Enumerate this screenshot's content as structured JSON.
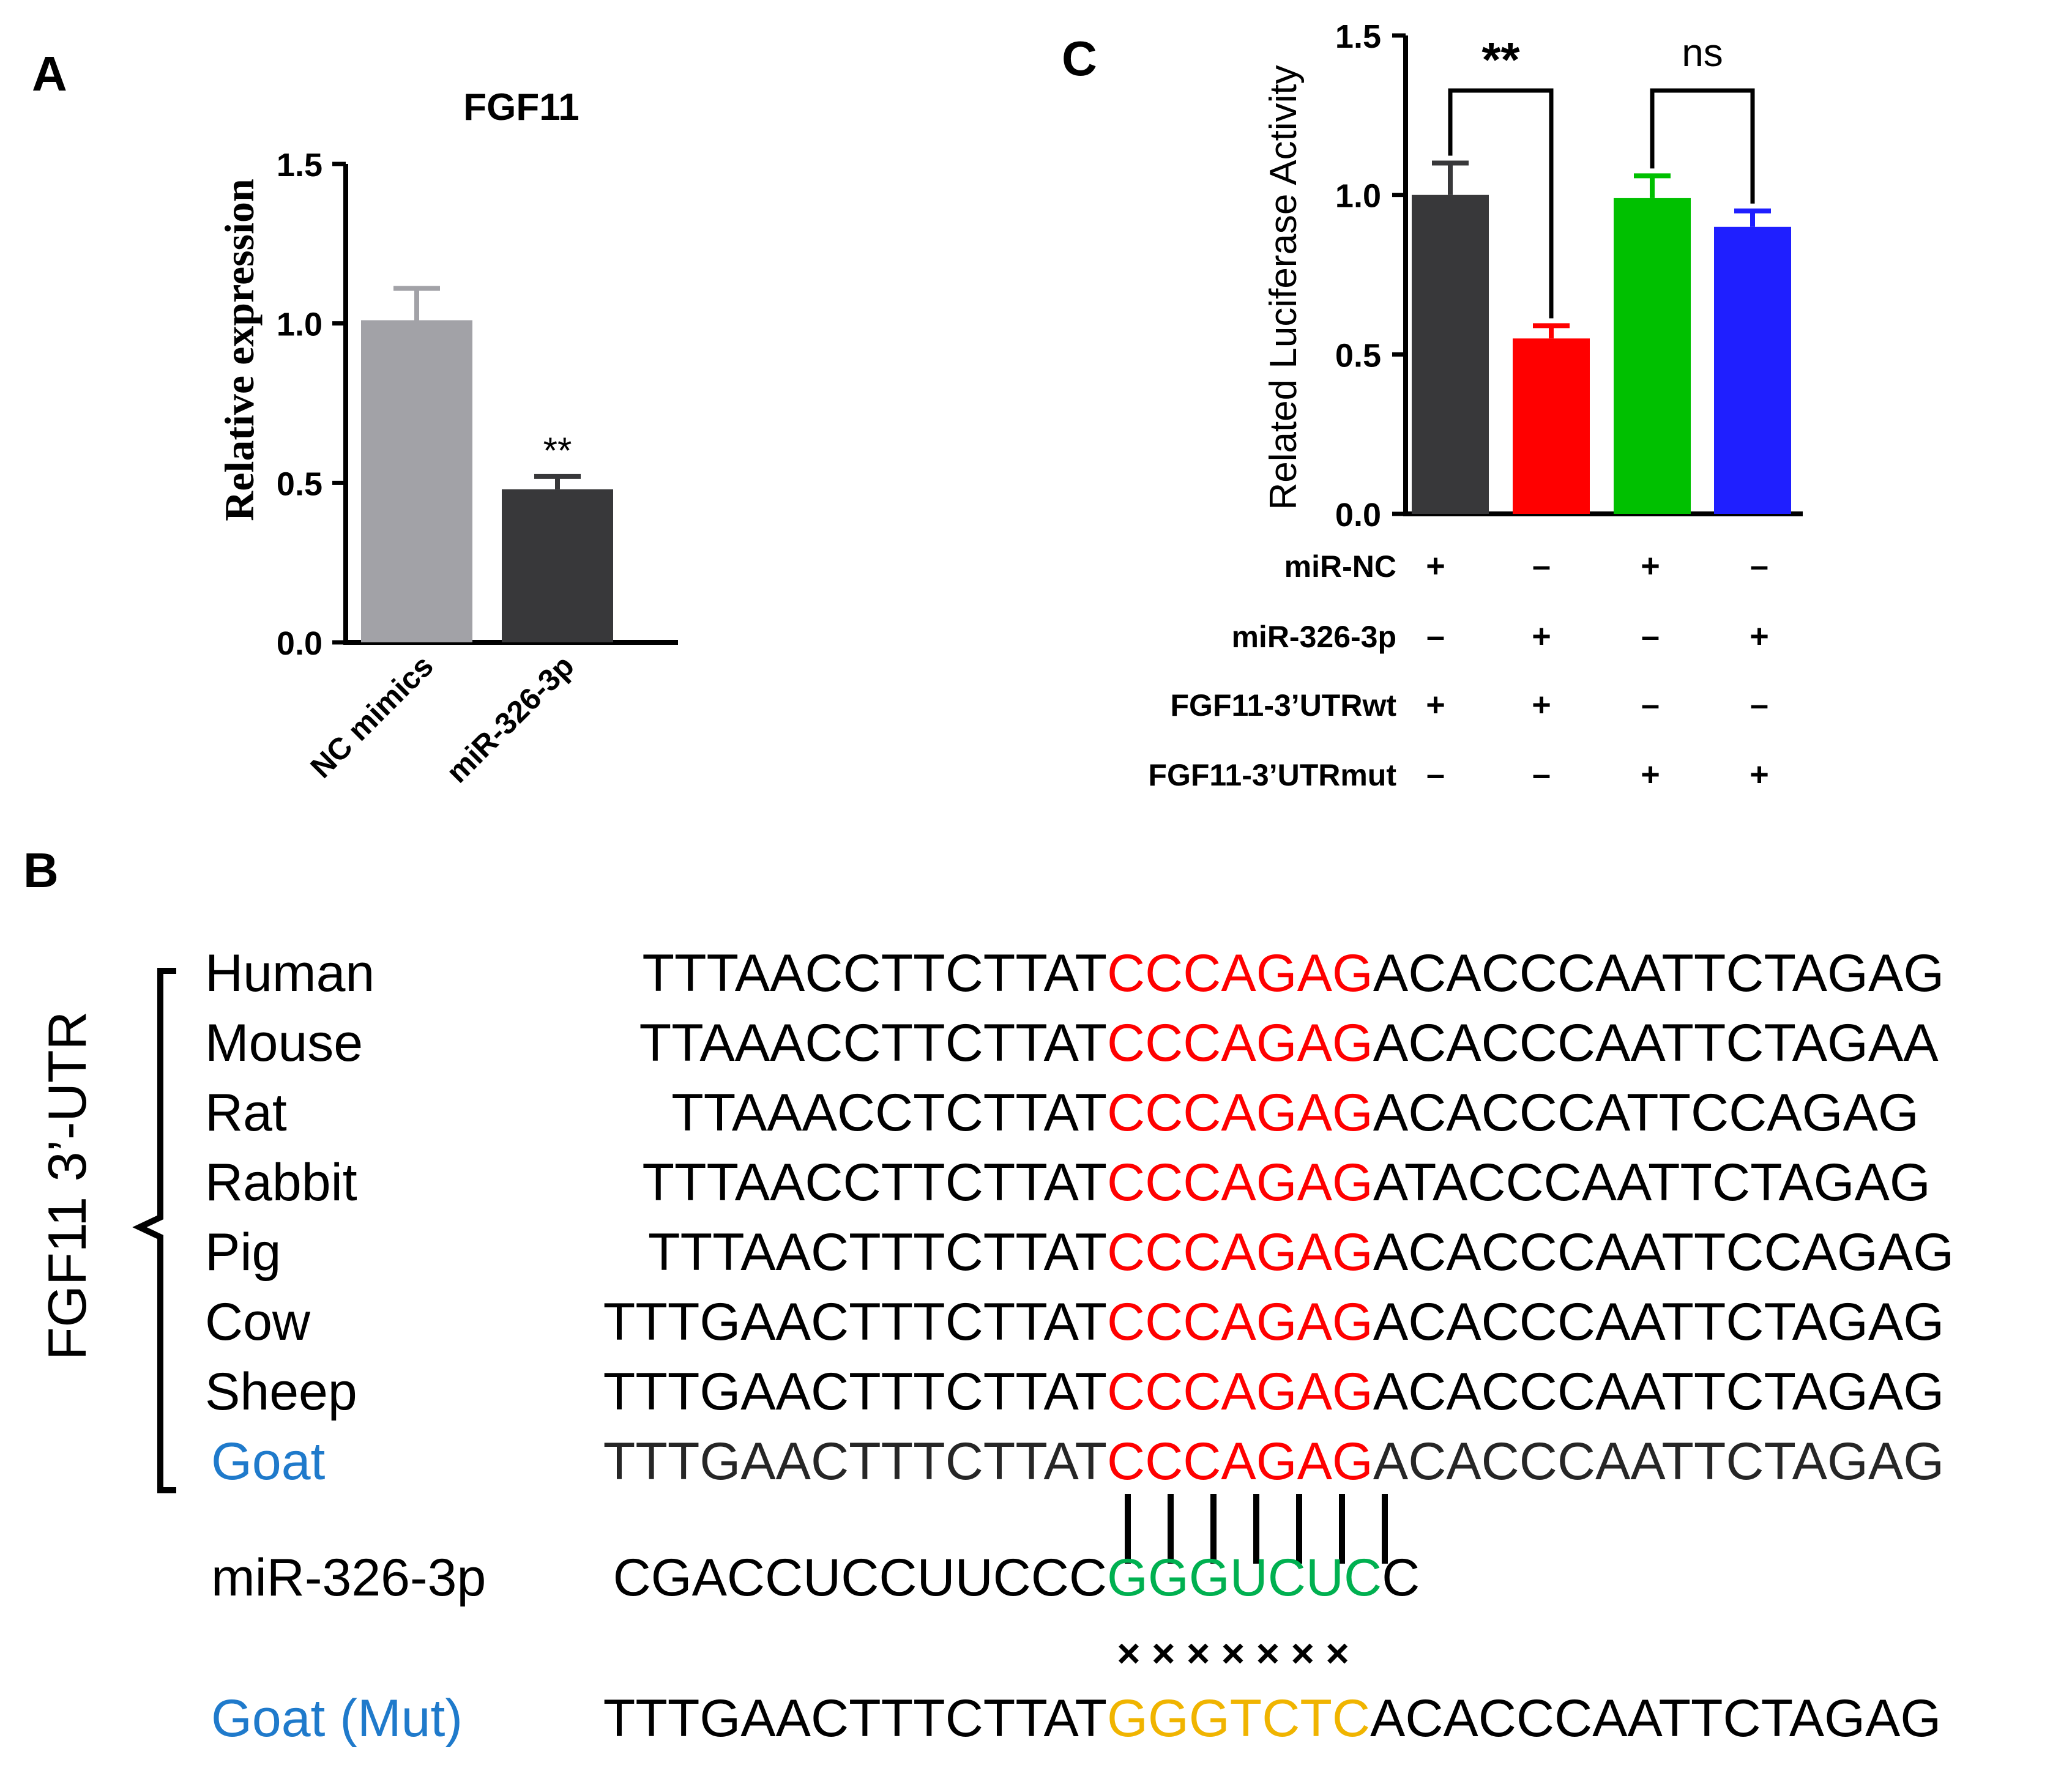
{
  "panels": {
    "A": {
      "letter": "A",
      "chart_data": {
        "type": "bar",
        "title": "FGF11",
        "ylabel": "Relative expression",
        "xlabel": "",
        "categories": [
          "NC mimics",
          "miR-326-3p"
        ],
        "values": [
          1.01,
          0.48
        ],
        "errors": [
          0.1,
          0.04
        ],
        "significance": [
          "",
          "**"
        ],
        "colors": [
          "#a2a2a7",
          "#38383a"
        ],
        "ylim": [
          0,
          1.5
        ],
        "yticks": [
          "0.0",
          "0.5",
          "1.0",
          "1.5"
        ],
        "grid": false
      }
    },
    "C": {
      "letter": "C",
      "chart_data": {
        "type": "bar",
        "ylabel": "Related Luciferase Activity",
        "xlabel": "",
        "categories": [
          "1",
          "2",
          "3",
          "4"
        ],
        "values": [
          1.0,
          0.55,
          0.99,
          0.9
        ],
        "errors": [
          0.1,
          0.04,
          0.07,
          0.05
        ],
        "colors": [
          "#38383a",
          "#ff0000",
          "#00c000",
          "#1f1fff"
        ],
        "ylim": [
          0,
          1.5
        ],
        "yticks": [
          "0.0",
          "0.5",
          "1.0",
          "1.5"
        ],
        "grid": false,
        "comparisons": [
          {
            "groups": [
              1,
              2
            ],
            "label": "**"
          },
          {
            "groups": [
              3,
              4
            ],
            "label": "ns"
          }
        ],
        "condition_table": {
          "rows": [
            {
              "label": "miR-NC",
              "values": [
                "+",
                "–",
                "+",
                "–"
              ]
            },
            {
              "label": "miR-326-3p",
              "values": [
                "–",
                "+",
                "–",
                "+"
              ]
            },
            {
              "label": "FGF11-3’UTRwt",
              "values": [
                "+",
                "+",
                "–",
                "–"
              ]
            },
            {
              "label": "FGF11-3’UTRmut",
              "values": [
                "–",
                "–",
                "+",
                "+"
              ]
            }
          ]
        }
      }
    },
    "B": {
      "letter": "B",
      "group_label": "FGF11 3’-UTR",
      "species": [
        {
          "name": "Human",
          "pre": "TTTAACCTTCTTAT",
          "site": "CCCAGAG",
          "post": "ACACCCAATTCTAGAG"
        },
        {
          "name": "Mouse",
          "pre": "TTAAACCTTCTTAT",
          "site": "CCCAGAG",
          "post": "ACACCCAATTCTAGAA"
        },
        {
          "name": "Rat",
          "pre": "TTAAACCTCTTAT",
          "site": "CCCAGAG",
          "post": "ACACCCATTCCAGAG"
        },
        {
          "name": "Rabbit",
          "pre": "TTTAACCTTCTTAT",
          "site": "CCCAGAG",
          "post": "ATACCCAATTCTAGAG"
        },
        {
          "name": "Pig",
          "pre": "TTTAACTTTCTTAT",
          "site": "CCCAGAG",
          "post": "ACACCCAATTCCAGAG"
        },
        {
          "name": "Cow",
          "pre": "TTTGAACTTTCTTAT",
          "site": "CCCAGAG",
          "post": "ACACCCAATTCTAGAG"
        },
        {
          "name": "Sheep",
          "pre": "TTTGAACTTTCTTAT",
          "site": "CCCAGAG",
          "post": "ACACCCAATTCTAGAG"
        },
        {
          "name": "Goat",
          "pre": "TTTGAACTTTCTTAT",
          "site": "CCCAGAG",
          "post": "ACACCCAATTCTAGAG"
        }
      ],
      "mirna": {
        "name": "miR-326-3p",
        "pre": "CGACCUCCUUCCC",
        "seed": "GGGUCUC",
        "post": "C"
      },
      "pair_count": 7,
      "mismatch_marks": "× × × × × × ×",
      "mutant": {
        "name": "Goat (Mut)",
        "pre": "TTTGAACTTTCTTAT",
        "site": "GGGTCTC",
        "post": "ACACCCAATTCTAGAG"
      },
      "colors": {
        "site": "#ff0000",
        "seed": "#00b050",
        "mutant": "#f0b400",
        "goat_label": "#1f7acb",
        "text": "#000000"
      }
    }
  }
}
